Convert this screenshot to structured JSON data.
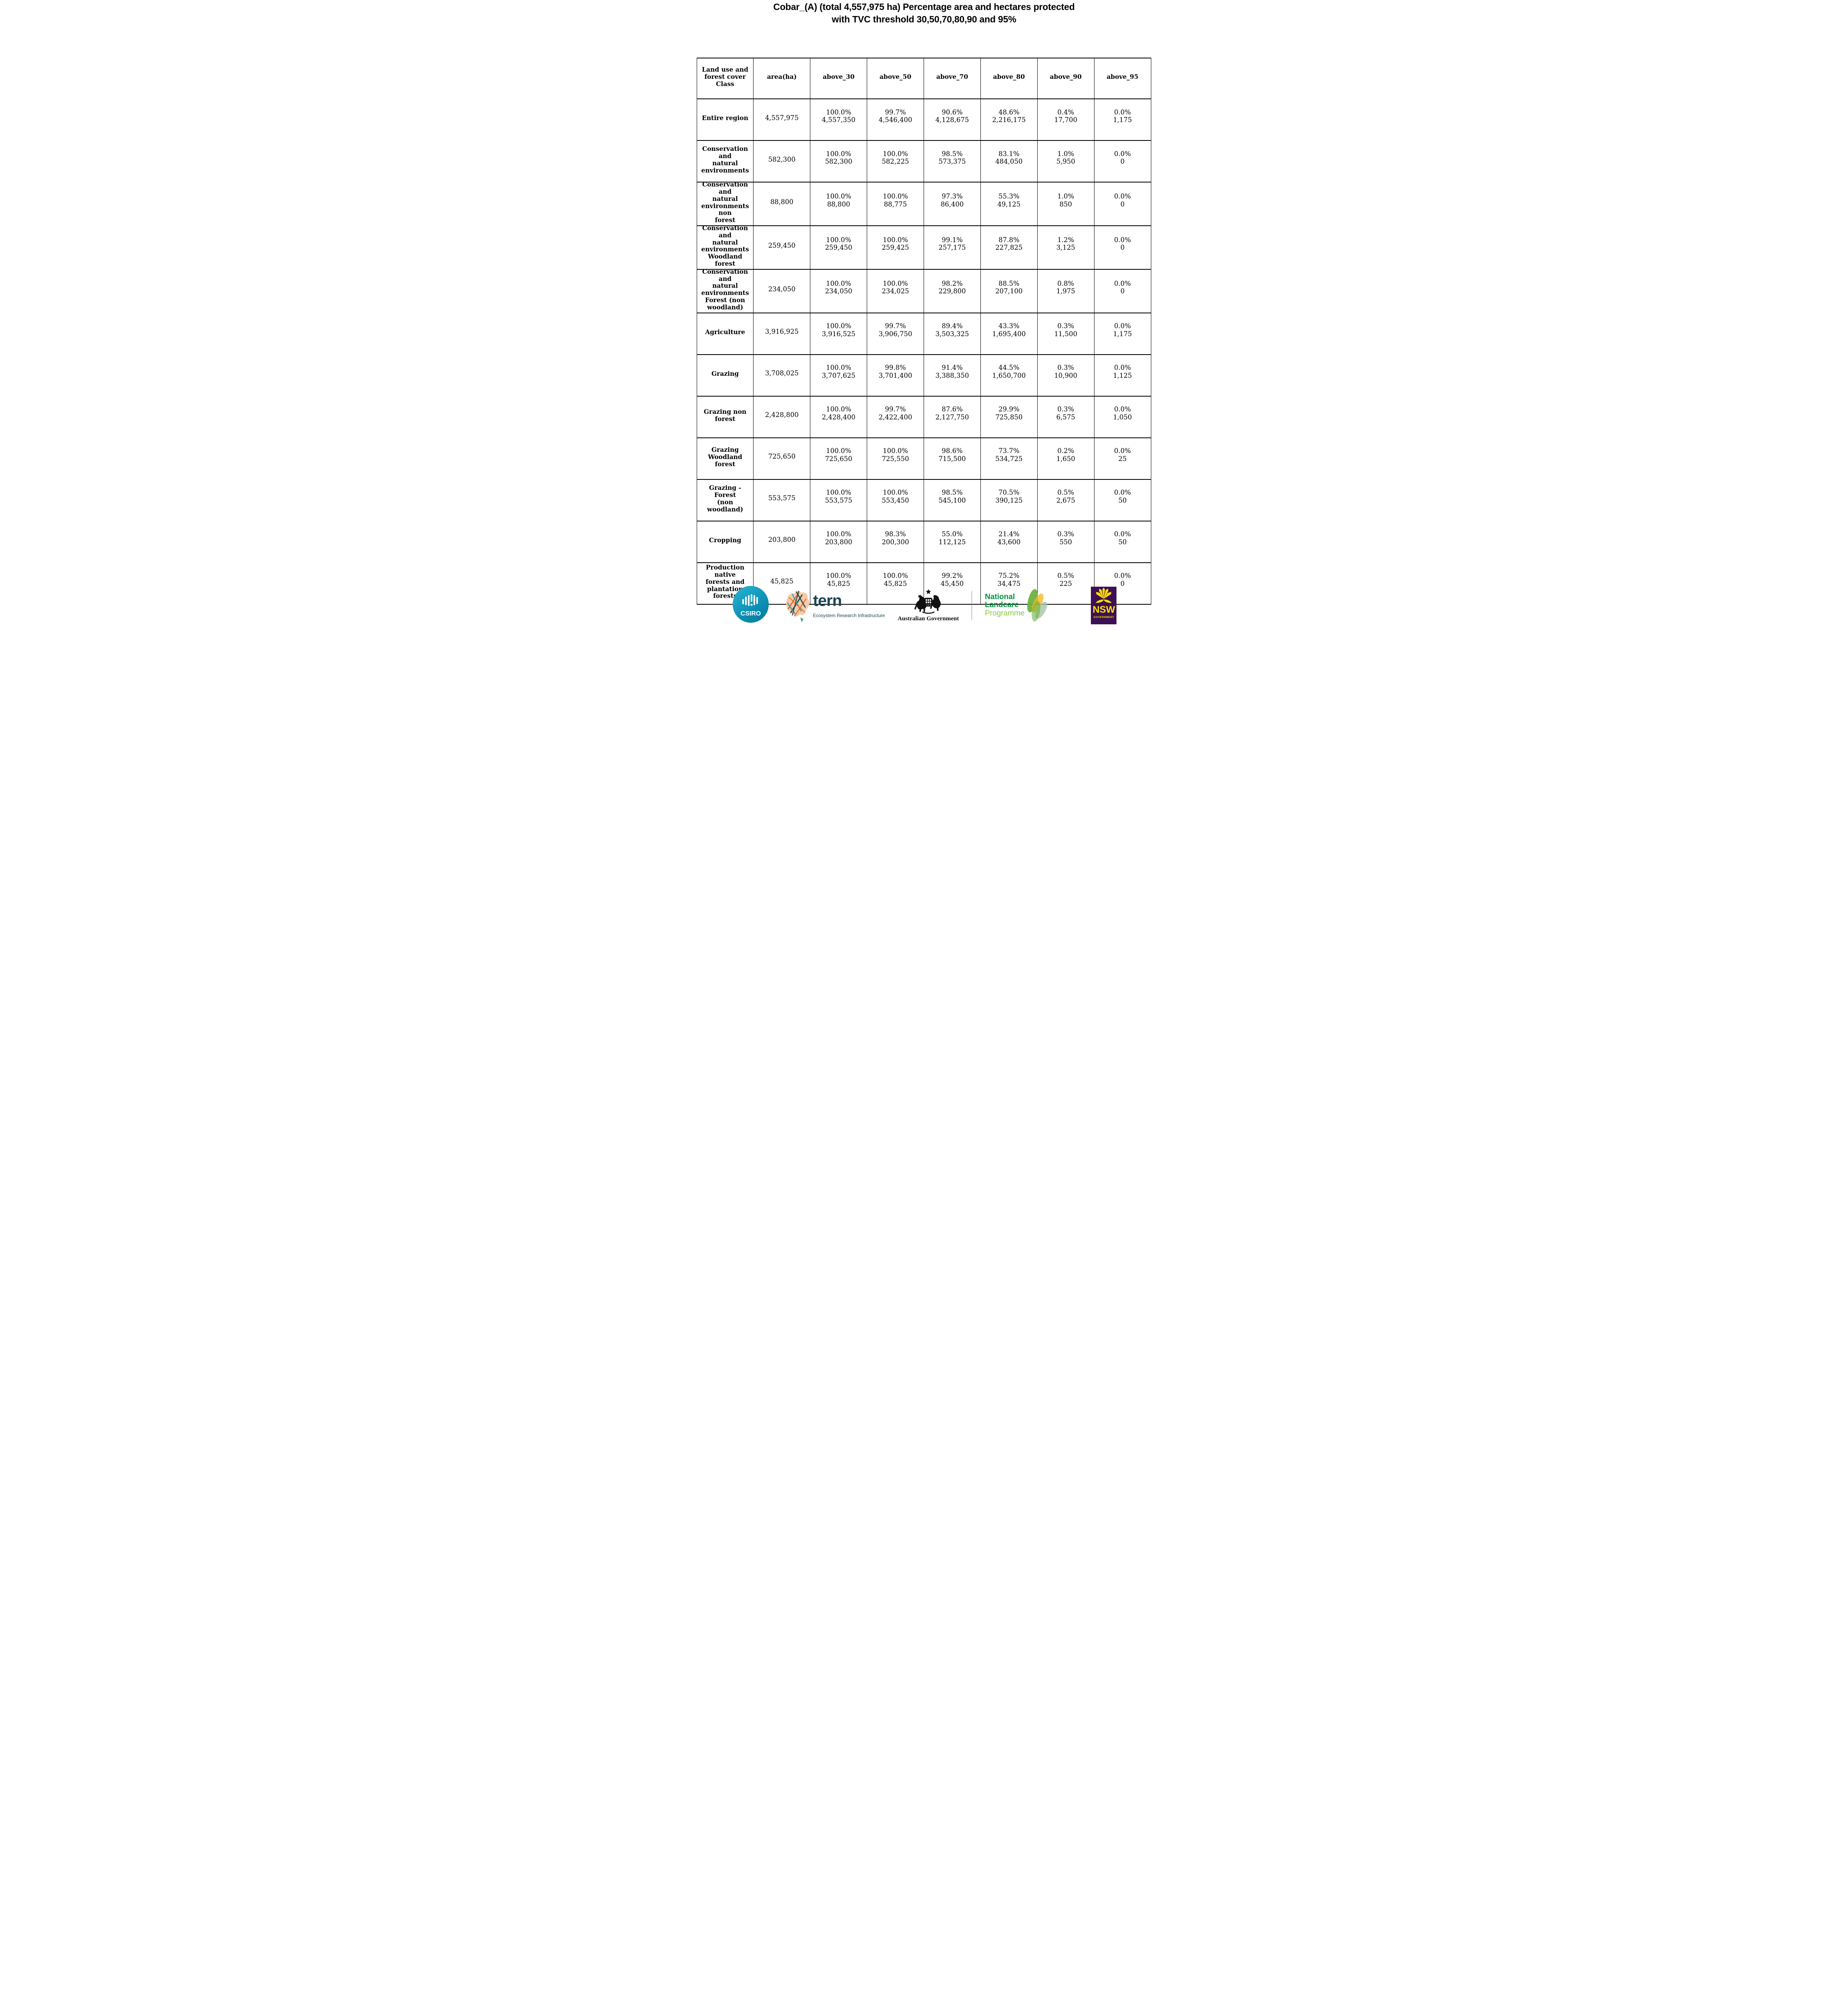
{
  "title": {
    "line1": "Cobar_(A) (total 4,557,975 ha) Percentage area and hectares protected",
    "line2": "with TVC  threshold 30,50,70,80,90 and 95%"
  },
  "table": {
    "columns": [
      "Land use and\nforest cover\nClass",
      "area(ha)",
      "above_30",
      "above_50",
      "above_70",
      "above_80",
      "above_90",
      "above_95"
    ],
    "rows": [
      {
        "label": "Entire region",
        "area": "4,557,975",
        "cells": [
          {
            "pct": "100.0%",
            "ha": "4,557,350"
          },
          {
            "pct": "99.7%",
            "ha": "4,546,400"
          },
          {
            "pct": "90.6%",
            "ha": "4,128,675"
          },
          {
            "pct": "48.6%",
            "ha": "2,216,175"
          },
          {
            "pct": "0.4%",
            "ha": "17,700"
          },
          {
            "pct": "0.0%",
            "ha": "1,175"
          }
        ]
      },
      {
        "label": "Conservation and\nnatural\nenvironments",
        "area": "582,300",
        "cells": [
          {
            "pct": "100.0%",
            "ha": "582,300"
          },
          {
            "pct": "100.0%",
            "ha": "582,225"
          },
          {
            "pct": "98.5%",
            "ha": "573,375"
          },
          {
            "pct": "83.1%",
            "ha": "484,050"
          },
          {
            "pct": "1.0%",
            "ha": "5,950"
          },
          {
            "pct": "0.0%",
            "ha": "0"
          }
        ]
      },
      {
        "label": "Conservation and\nnatural\nenvironments non\nforest",
        "area": "88,800",
        "cells": [
          {
            "pct": "100.0%",
            "ha": "88,800"
          },
          {
            "pct": "100.0%",
            "ha": "88,775"
          },
          {
            "pct": "97.3%",
            "ha": "86,400"
          },
          {
            "pct": "55.3%",
            "ha": "49,125"
          },
          {
            "pct": "1.0%",
            "ha": "850"
          },
          {
            "pct": "0.0%",
            "ha": "0"
          }
        ]
      },
      {
        "label": "Conservation and\nnatural\nenvironments\nWoodland forest",
        "area": "259,450",
        "cells": [
          {
            "pct": "100.0%",
            "ha": "259,450"
          },
          {
            "pct": "100.0%",
            "ha": "259,425"
          },
          {
            "pct": "99.1%",
            "ha": "257,175"
          },
          {
            "pct": "87.8%",
            "ha": "227,825"
          },
          {
            "pct": "1.2%",
            "ha": "3,125"
          },
          {
            "pct": "0.0%",
            "ha": "0"
          }
        ]
      },
      {
        "label": "Conservation and\nnatural\nenvironments\nForest (non\nwoodland)",
        "area": "234,050",
        "cells": [
          {
            "pct": "100.0%",
            "ha": "234,050"
          },
          {
            "pct": "100.0%",
            "ha": "234,025"
          },
          {
            "pct": "98.2%",
            "ha": "229,800"
          },
          {
            "pct": "88.5%",
            "ha": "207,100"
          },
          {
            "pct": "0.8%",
            "ha": "1,975"
          },
          {
            "pct": "0.0%",
            "ha": "0"
          }
        ]
      },
      {
        "label": "Agriculture",
        "area": "3,916,925",
        "cells": [
          {
            "pct": "100.0%",
            "ha": "3,916,525"
          },
          {
            "pct": "99.7%",
            "ha": "3,906,750"
          },
          {
            "pct": "89.4%",
            "ha": "3,503,325"
          },
          {
            "pct": "43.3%",
            "ha": "1,695,400"
          },
          {
            "pct": "0.3%",
            "ha": "11,500"
          },
          {
            "pct": "0.0%",
            "ha": "1,175"
          }
        ]
      },
      {
        "label": "Grazing",
        "area": "3,708,025",
        "cells": [
          {
            "pct": "100.0%",
            "ha": "3,707,625"
          },
          {
            "pct": "99.8%",
            "ha": "3,701,400"
          },
          {
            "pct": "91.4%",
            "ha": "3,388,350"
          },
          {
            "pct": "44.5%",
            "ha": "1,650,700"
          },
          {
            "pct": "0.3%",
            "ha": "10,900"
          },
          {
            "pct": "0.0%",
            "ha": "1,125"
          }
        ]
      },
      {
        "label": "Grazing non\nforest",
        "area": "2,428,800",
        "cells": [
          {
            "pct": "100.0%",
            "ha": "2,428,400"
          },
          {
            "pct": "99.7%",
            "ha": "2,422,400"
          },
          {
            "pct": "87.6%",
            "ha": "2,127,750"
          },
          {
            "pct": "29.9%",
            "ha": "725,850"
          },
          {
            "pct": "0.3%",
            "ha": "6,575"
          },
          {
            "pct": "0.0%",
            "ha": "1,050"
          }
        ]
      },
      {
        "label": "Grazing Woodland\nforest",
        "area": "725,650",
        "cells": [
          {
            "pct": "100.0%",
            "ha": "725,650"
          },
          {
            "pct": "100.0%",
            "ha": "725,550"
          },
          {
            "pct": "98.6%",
            "ha": "715,500"
          },
          {
            "pct": "73.7%",
            "ha": "534,725"
          },
          {
            "pct": "0.2%",
            "ha": "1,650"
          },
          {
            "pct": "0.0%",
            "ha": "25"
          }
        ]
      },
      {
        "label": "Grazing - Forest\n(non woodland)",
        "area": "553,575",
        "cells": [
          {
            "pct": "100.0%",
            "ha": "553,575"
          },
          {
            "pct": "100.0%",
            "ha": "553,450"
          },
          {
            "pct": "98.5%",
            "ha": "545,100"
          },
          {
            "pct": "70.5%",
            "ha": "390,125"
          },
          {
            "pct": "0.5%",
            "ha": "2,675"
          },
          {
            "pct": "0.0%",
            "ha": "50"
          }
        ]
      },
      {
        "label": "Cropping",
        "area": "203,800",
        "cells": [
          {
            "pct": "100.0%",
            "ha": "203,800"
          },
          {
            "pct": "98.3%",
            "ha": "200,300"
          },
          {
            "pct": "55.0%",
            "ha": "112,125"
          },
          {
            "pct": "21.4%",
            "ha": "43,600"
          },
          {
            "pct": "0.3%",
            "ha": "550"
          },
          {
            "pct": "0.0%",
            "ha": "50"
          }
        ]
      },
      {
        "label": "Production native\nforests and\nplantation\nforests",
        "area": "45,825",
        "cells": [
          {
            "pct": "100.0%",
            "ha": "45,825"
          },
          {
            "pct": "100.0%",
            "ha": "45,825"
          },
          {
            "pct": "99.2%",
            "ha": "45,450"
          },
          {
            "pct": "75.2%",
            "ha": "34,475"
          },
          {
            "pct": "0.5%",
            "ha": "225"
          },
          {
            "pct": "0.0%",
            "ha": "0"
          }
        ]
      }
    ]
  },
  "footer": {
    "csiro": "CSIRO",
    "tern": "tern",
    "tern_tagline": "Ecosystem Research Infrastructure",
    "aus_gov": "Australian Government",
    "landcare_line1": "National",
    "landcare_line2": "Landcare",
    "landcare_line3": "Programme",
    "nsw": "NSW",
    "nsw_sub": "GOVERNMENT"
  },
  "colors": {
    "csiro_teal_light": "#2ab5d6",
    "csiro_teal_dark": "#007fa3",
    "tern_dark": "#1c4654",
    "tern_peach": "#f6cba6",
    "tern_orange": "#e46a35",
    "tern_teal": "#4d9e98",
    "landcare_green": "#00953b",
    "landcare_light": "#8dc63f",
    "landcare_leaf": "#6cb33f",
    "landcare_yellow": "#f4b62a",
    "landcare_sage": "#a7c4ab",
    "nsw_purple": "#3c1053",
    "nsw_yellow": "#ffe100",
    "crest_black": "#111111"
  }
}
